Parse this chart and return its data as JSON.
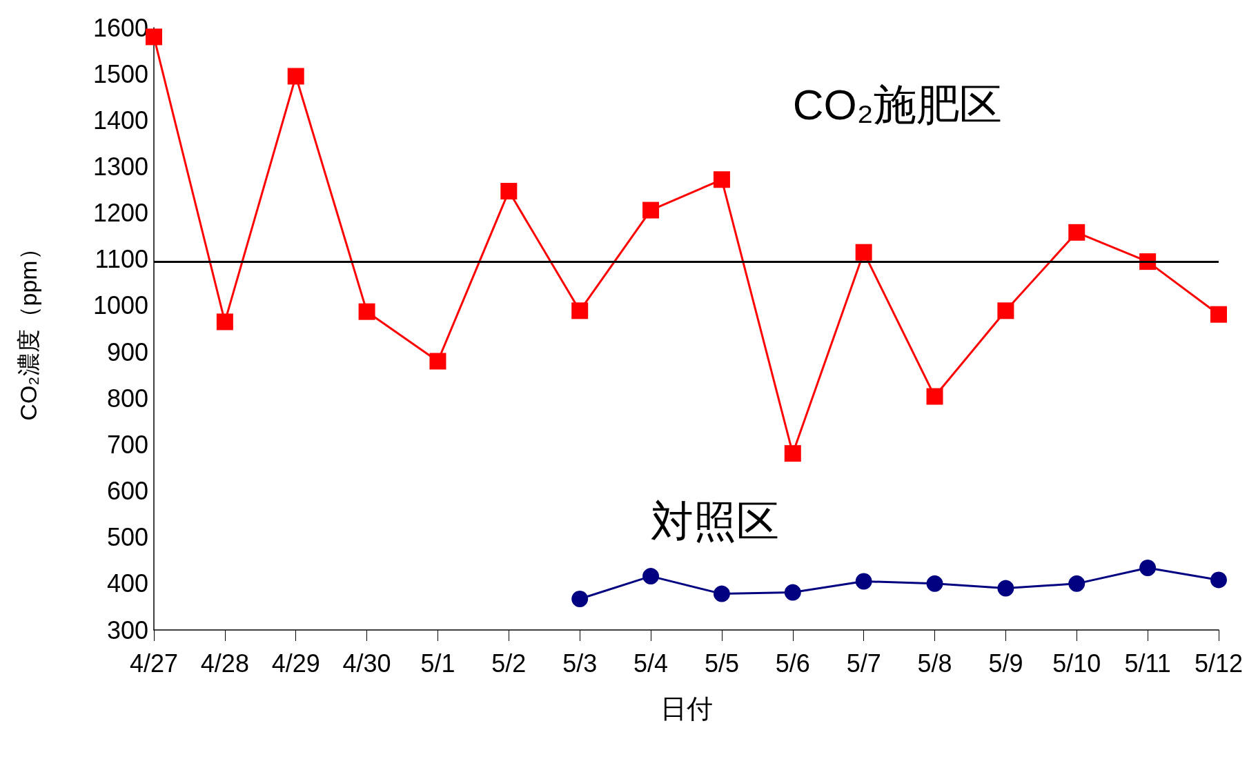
{
  "chart_data": {
    "type": "line",
    "xlabel": "日付",
    "ylabel": "CO₂濃度（ppm）",
    "categories": [
      "4/27",
      "4/28",
      "4/29",
      "4/30",
      "5/1",
      "5/2",
      "5/3",
      "5/4",
      "5/5",
      "5/6",
      "5/7",
      "5/8",
      "5/9",
      "5/10",
      "5/11",
      "5/12"
    ],
    "series": [
      {
        "name": "CO₂施肥区",
        "color": "#ff0000",
        "marker": "square",
        "values": [
          1580,
          965,
          1495,
          987,
          880,
          1247,
          989,
          1206,
          1272,
          681,
          1115,
          804,
          989,
          1158,
          1095,
          981
        ]
      },
      {
        "name": "対照区",
        "color": "#000080",
        "marker": "circle",
        "values": [
          null,
          null,
          null,
          null,
          null,
          null,
          367,
          416,
          378,
          381,
          405,
          400,
          390,
          400,
          434,
          408
        ]
      }
    ],
    "ylim": [
      300,
      1600
    ],
    "yticks": [
      300,
      400,
      500,
      600,
      700,
      800,
      900,
      1000,
      1100,
      1200,
      1300,
      1400,
      1500,
      1600
    ],
    "ref_lines": [
      {
        "axis": "y",
        "value": 1095,
        "color": "#000000"
      }
    ],
    "grid": false,
    "legend": false
  }
}
